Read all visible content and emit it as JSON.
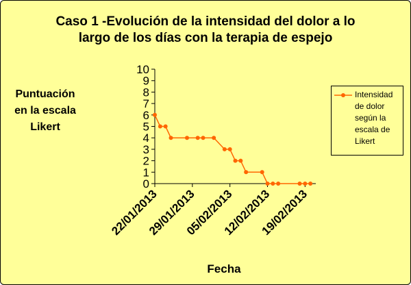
{
  "chart_data": {
    "type": "line",
    "title": [
      "Caso 1 -Evolución de la intensidad del dolor a lo",
      "largo de los días con la terapia de espejo"
    ],
    "y_label": [
      "Puntuación",
      "en la escala",
      "Likert"
    ],
    "x_label": "Fecha",
    "x": [
      "22/01/2013",
      "23/01/2013",
      "24/01/2013",
      "25/01/2013",
      "28/01/2013",
      "30/01/2013",
      "31/01/2013",
      "02/02/2013",
      "04/02/2013",
      "05/02/2013",
      "06/02/2013",
      "07/02/2013",
      "08/02/2013",
      "11/02/2013",
      "12/02/2013",
      "13/02/2013",
      "14/02/2013",
      "18/02/2013",
      "19/02/2013",
      "20/02/2013"
    ],
    "series": [
      {
        "name": "Intensidad de dolor según la escala de Likert",
        "color": "#ff6600",
        "values": [
          6,
          5,
          5,
          4,
          4,
          4,
          4,
          4,
          3,
          3,
          2,
          2,
          1,
          1,
          0,
          0,
          0,
          0,
          0,
          0
        ]
      }
    ],
    "xlim": [
      "22/01/2013",
      "21/02/2013"
    ],
    "xticks": [
      "22/01/2013",
      "29/01/2013",
      "05/02/2013",
      "12/02/2013",
      "19/02/2013"
    ],
    "ylim": [
      0,
      10
    ],
    "yticks": [
      0,
      1,
      2,
      3,
      4,
      5,
      6,
      7,
      8,
      9,
      10
    ],
    "legend": "right"
  }
}
